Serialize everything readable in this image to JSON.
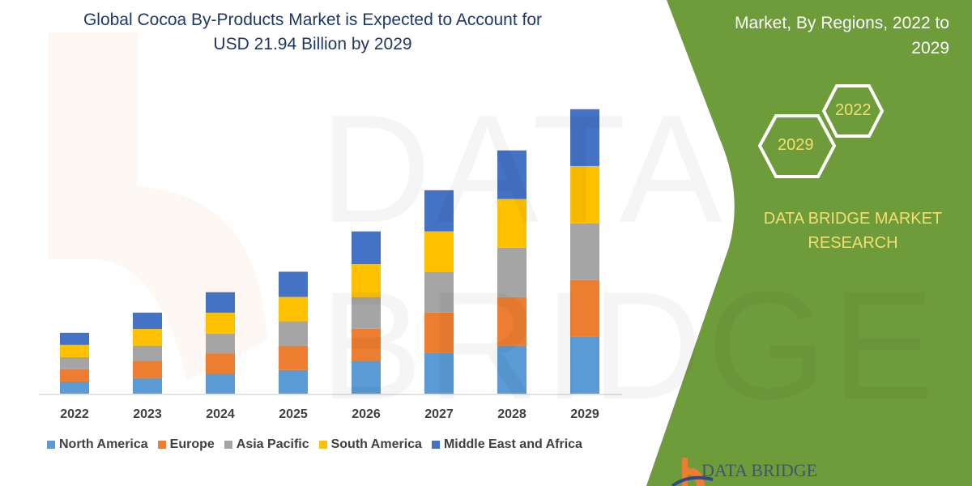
{
  "title": {
    "line1": "Global Cocoa By-Products Market is Expected to Account for",
    "line2": "USD 21.94 Billion by 2029"
  },
  "side_panel": {
    "title_line1": "Market, By Regions, 2022 to",
    "title_line2": "2029",
    "hex_2022": "2022",
    "hex_2029": "2029",
    "brand_line1": "DATA BRIDGE MARKET",
    "brand_line2": "RESEARCH",
    "logo_text": "DATA BRIDGE",
    "panel_color": "#6f9c3b",
    "accent_text_color": "#f3de72"
  },
  "watermark": "DATA BRIDGE",
  "chart_data": {
    "type": "bar",
    "stacked": true,
    "title": "Global Cocoa By-Products Market is Expected to Account for USD 21.94 Billion by 2029",
    "xlabel": "",
    "ylabel": "",
    "y_axis_shown": false,
    "grid": false,
    "legend_position": "bottom",
    "categories": [
      "2022",
      "2023",
      "2024",
      "2025",
      "2026",
      "2027",
      "2028",
      "2029"
    ],
    "series": [
      {
        "name": "North America",
        "color": "#5b9bd5",
        "values": [
          0.94,
          1.21,
          1.56,
          1.83,
          2.5,
          3.13,
          3.71,
          4.38
        ]
      },
      {
        "name": "Europe",
        "color": "#ed7d31",
        "values": [
          0.94,
          1.29,
          1.56,
          1.88,
          2.52,
          3.13,
          3.75,
          4.39
        ]
      },
      {
        "name": "Asia Pacific",
        "color": "#a5a5a5",
        "values": [
          0.94,
          1.21,
          1.52,
          1.88,
          2.44,
          3.14,
          3.81,
          4.38
        ]
      },
      {
        "name": "South America",
        "color": "#ffc000",
        "values": [
          0.94,
          1.29,
          1.61,
          1.88,
          2.54,
          3.13,
          3.75,
          4.42
        ]
      },
      {
        "name": "Middle East and Africa",
        "color": "#4472c4",
        "values": [
          0.94,
          1.25,
          1.58,
          1.94,
          2.52,
          3.17,
          3.75,
          4.38
        ]
      }
    ]
  }
}
